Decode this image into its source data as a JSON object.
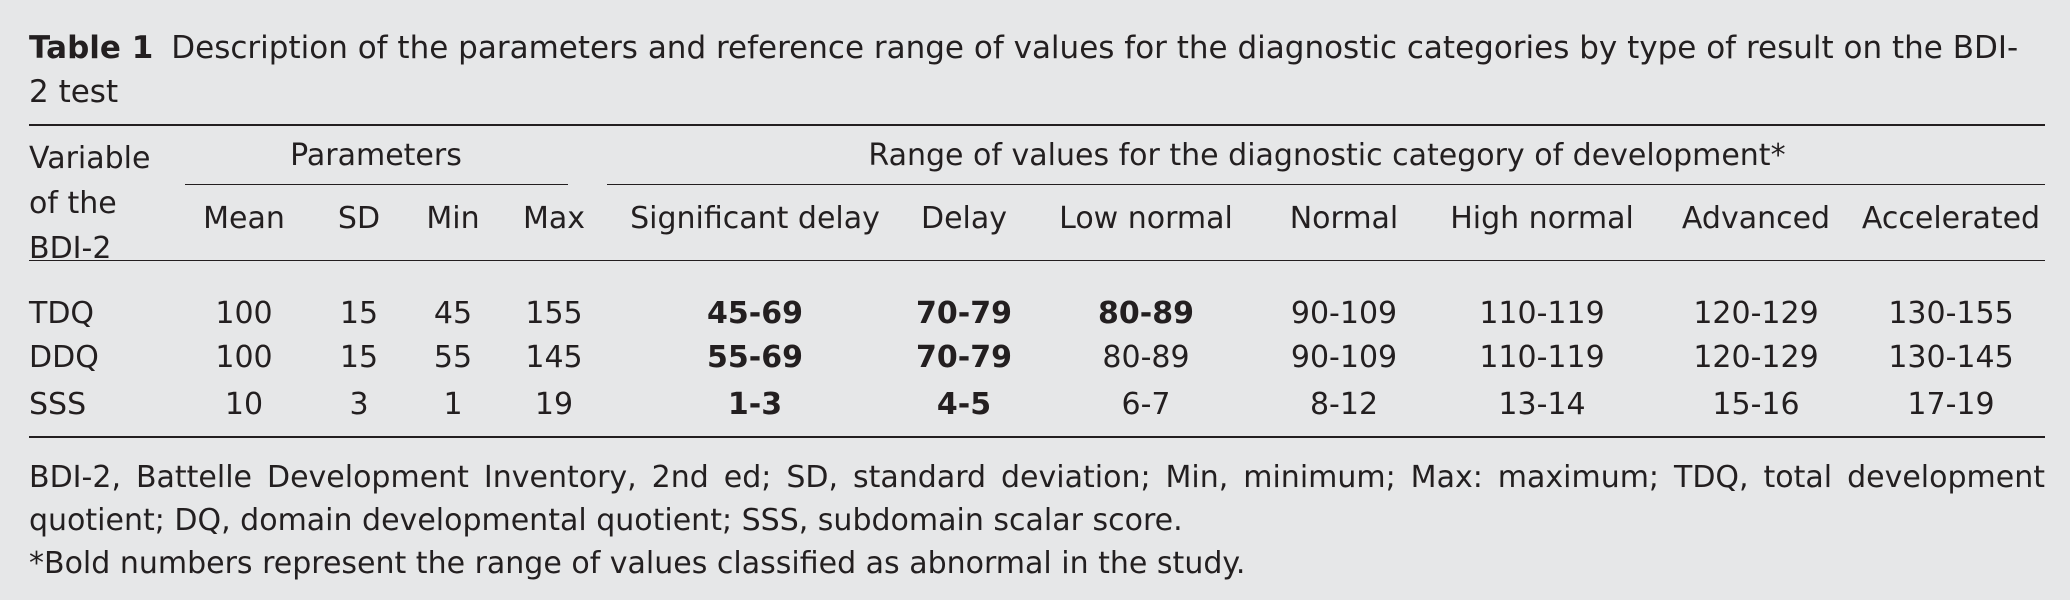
{
  "caption": {
    "label": "Table 1",
    "text": "Description of the parameters and reference range of values for the diagnostic categories by type of result on the BDI-2 test"
  },
  "table": {
    "header": {
      "variable": "Variable of the BDI-2",
      "parameters": "Parameters",
      "ranges": "Range of values for the diagnostic category of development*",
      "columns": [
        "Mean",
        "SD",
        "Min",
        "Max",
        "Significant delay",
        "Delay",
        "Low normal",
        "Normal",
        "High normal",
        "Advanced",
        "Accelerated"
      ]
    },
    "rows": [
      {
        "variable": "TDQ",
        "cells": [
          "100",
          "15",
          "45",
          "155",
          "45-69",
          "70-79",
          "80-89",
          "90-109",
          "110-119",
          "120-129",
          "130-155"
        ],
        "bold": [
          false,
          false,
          false,
          false,
          true,
          true,
          true,
          false,
          false,
          false,
          false
        ]
      },
      {
        "variable": "DDQ",
        "cells": [
          "100",
          "15",
          "55",
          "145",
          "55-69",
          "70-79",
          "80-89",
          "90-109",
          "110-119",
          "120-129",
          "130-145"
        ],
        "bold": [
          false,
          false,
          false,
          false,
          true,
          true,
          false,
          false,
          false,
          false,
          false
        ]
      },
      {
        "variable": "SSS",
        "cells": [
          "10",
          "3",
          "1",
          "19",
          "1-3",
          "4-5",
          "6-7",
          "8-12",
          "13-14",
          "15-16",
          "17-19"
        ],
        "bold": [
          false,
          false,
          false,
          false,
          true,
          true,
          false,
          false,
          false,
          false,
          false
        ]
      }
    ]
  },
  "footnotes": [
    "BDI-2, Battelle Development Inventory, 2nd ed; SD, standard deviation; Min, minimum; Max: maximum; TDQ, total development quotient; DQ, domain developmental quotient; SSS, subdomain scalar score.",
    "*Bold numbers represent the range of values classified as abnormal in the study."
  ]
}
